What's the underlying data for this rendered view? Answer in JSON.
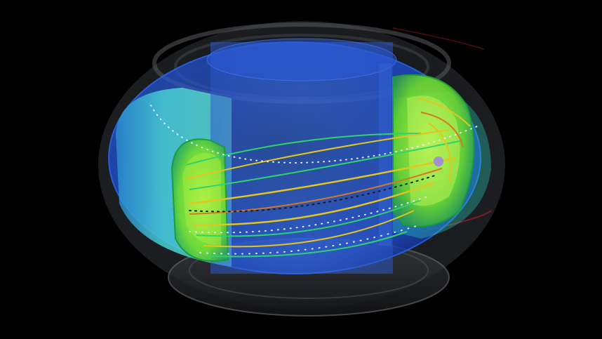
{
  "scene": {
    "subject": "toroidal-vessel-with-field-lines",
    "background_color": "#000000",
    "colors": {
      "outer_shell": "#3a3d42",
      "blue_shell": "#1f57e8",
      "cyan_plasma": "#3fc6d6",
      "green_surface": "#7be82a",
      "field_line_green": "#2fd36b",
      "field_line_yellow": "#e2c61d",
      "field_line_orange": "#d77a1e",
      "marker_white": "#e8eef5",
      "accent_red": "#b8202a",
      "accent_purple": "#9b7cf5"
    }
  }
}
